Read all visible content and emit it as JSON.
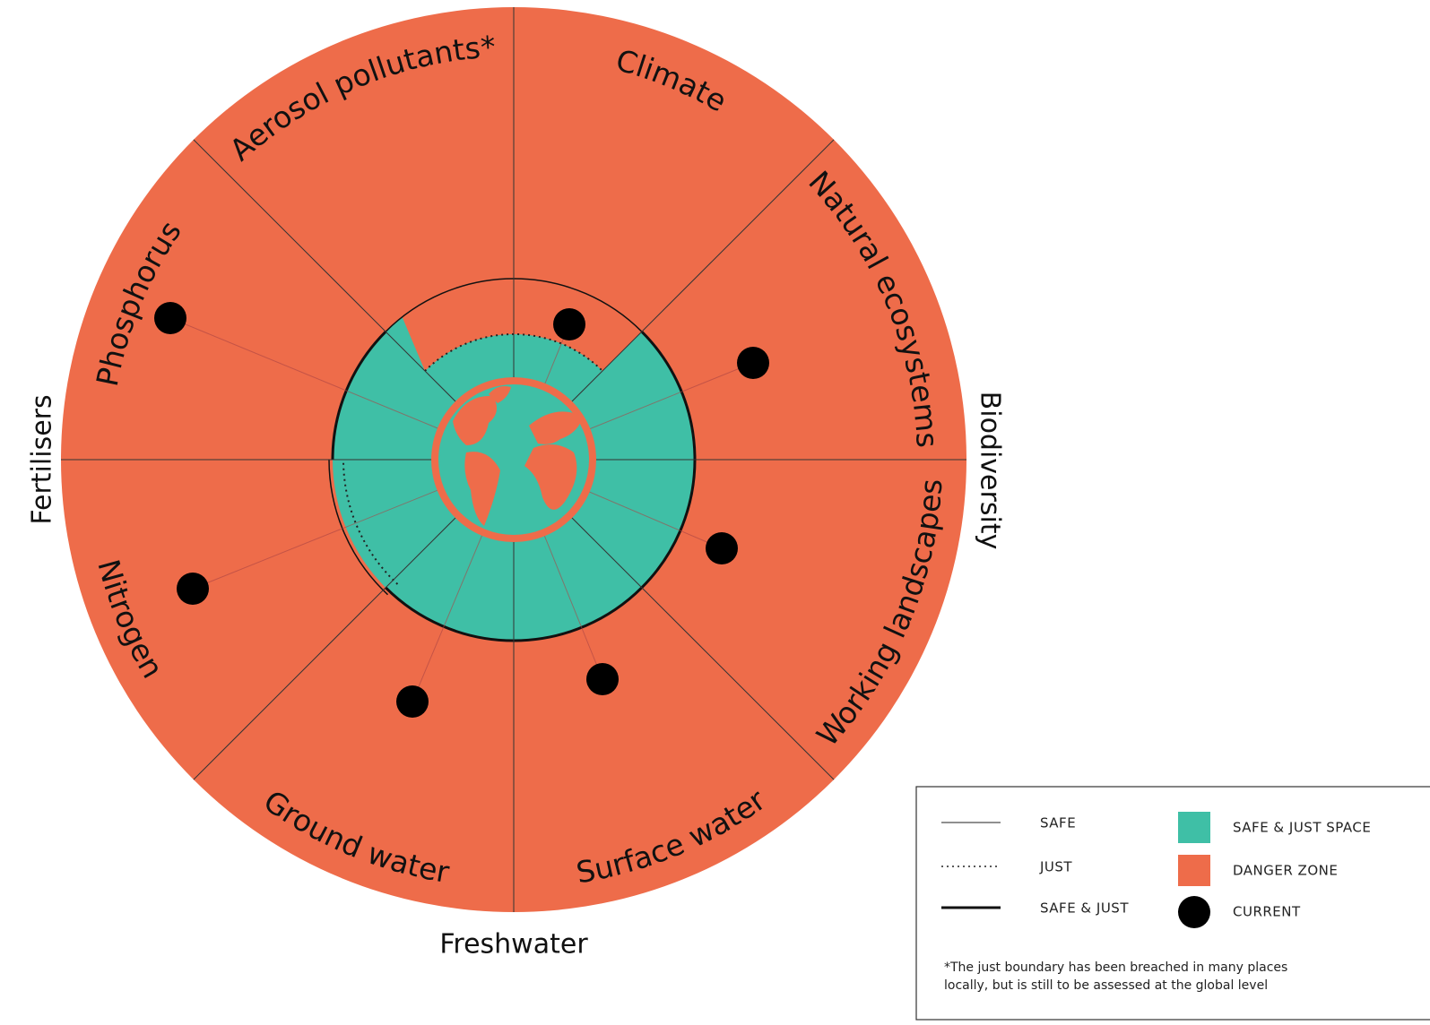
{
  "sectors": [
    "Aerosol pollutants*",
    "Climate",
    "Natural ecosystems",
    "Working landscapes",
    "Surface water",
    "Ground water",
    "Nitrogen",
    "Phosphorus"
  ],
  "groups": {
    "fertilisers": "Fertilisers",
    "biodiversity": "Biodiversity",
    "freshwater": "Freshwater"
  },
  "legend": {
    "lines": [
      "SAFE",
      "JUST",
      "SAFE & JUST"
    ],
    "areas": [
      "SAFE & JUST SPACE",
      "DANGER ZONE",
      "CURRENT"
    ],
    "footnote": [
      "*The just boundary has been breached in many places",
      "locally, but is still to be assessed at the global level"
    ]
  }
}
